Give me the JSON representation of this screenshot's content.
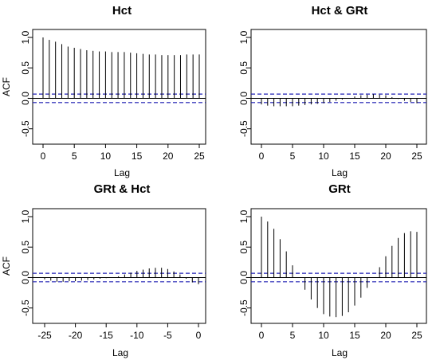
{
  "colors": {
    "ci_line": "#1f1fb4",
    "spike": "#000000"
  },
  "chart_data": [
    {
      "type": "bar",
      "title": "Hct",
      "xlabel": "Lag",
      "ylabel": "ACF",
      "xlim": [
        0,
        25
      ],
      "ylim": [
        -0.7,
        1.0
      ],
      "x_ticks": [
        "0",
        "5",
        "10",
        "15",
        "20",
        "25"
      ],
      "y_ticks": [
        "-0.5",
        "0.0",
        "0.5",
        "1.0"
      ],
      "conf_bound": 0.07,
      "x": [
        0,
        1,
        2,
        3,
        4,
        5,
        6,
        7,
        8,
        9,
        10,
        11,
        12,
        13,
        14,
        15,
        16,
        17,
        18,
        19,
        20,
        21,
        22,
        23,
        24,
        25
      ],
      "values": [
        1.0,
        0.96,
        0.93,
        0.89,
        0.85,
        0.83,
        0.81,
        0.79,
        0.78,
        0.77,
        0.77,
        0.76,
        0.76,
        0.76,
        0.75,
        0.74,
        0.73,
        0.72,
        0.72,
        0.71,
        0.71,
        0.71,
        0.71,
        0.72,
        0.72,
        0.72
      ]
    },
    {
      "type": "bar",
      "title": "Hct & GRt",
      "xlabel": "Lag",
      "ylabel": "",
      "xlim": [
        0,
        25
      ],
      "ylim": [
        -0.7,
        1.0
      ],
      "x_ticks": [
        "0",
        "5",
        "10",
        "15",
        "20",
        "25"
      ],
      "y_ticks": [
        "-0.5",
        "0.0",
        "0.5",
        "1.0"
      ],
      "conf_bound": 0.07,
      "x": [
        0,
        1,
        2,
        3,
        4,
        5,
        6,
        7,
        8,
        9,
        10,
        11,
        12,
        13,
        14,
        15,
        16,
        17,
        18,
        19,
        20,
        21,
        22,
        23,
        24,
        25
      ],
      "values": [
        -0.1,
        -0.12,
        -0.13,
        -0.13,
        -0.13,
        -0.13,
        -0.12,
        -0.11,
        -0.1,
        -0.09,
        -0.08,
        -0.06,
        -0.04,
        -0.02,
        0.0,
        0.03,
        0.05,
        0.06,
        0.07,
        0.06,
        0.05,
        0.02,
        -0.01,
        -0.04,
        -0.06,
        -0.08
      ]
    },
    {
      "type": "bar",
      "title": "GRt & Hct",
      "xlabel": "Lag",
      "ylabel": "ACF",
      "xlim": [
        -25,
        0
      ],
      "ylim": [
        -0.7,
        1.0
      ],
      "x_ticks": [
        "-25",
        "-20",
        "-15",
        "-10",
        "-5",
        "0"
      ],
      "y_ticks": [
        "-0.5",
        "0.0",
        "0.5",
        "1.0"
      ],
      "conf_bound": 0.07,
      "x": [
        -25,
        -24,
        -23,
        -22,
        -21,
        -20,
        -19,
        -18,
        -17,
        -16,
        -15,
        -14,
        -13,
        -12,
        -11,
        -10,
        -9,
        -8,
        -7,
        -6,
        -5,
        -4,
        -3,
        -2,
        -1,
        0
      ],
      "values": [
        -0.03,
        -0.05,
        -0.07,
        -0.07,
        -0.06,
        -0.06,
        -0.05,
        -0.04,
        -0.03,
        -0.02,
        -0.01,
        0.0,
        0.02,
        0.05,
        0.08,
        0.11,
        0.13,
        0.15,
        0.16,
        0.16,
        0.14,
        0.1,
        0.05,
        -0.02,
        -0.08,
        -0.11
      ]
    },
    {
      "type": "bar",
      "title": "GRt",
      "xlabel": "Lag",
      "ylabel": "",
      "xlim": [
        0,
        25
      ],
      "ylim": [
        -0.7,
        1.0
      ],
      "x_ticks": [
        "0",
        "5",
        "10",
        "15",
        "20",
        "25"
      ],
      "y_ticks": [
        "-0.5",
        "0.0",
        "0.5",
        "1.0"
      ],
      "conf_bound": 0.07,
      "x": [
        0,
        1,
        2,
        3,
        4,
        5,
        6,
        7,
        8,
        9,
        10,
        11,
        12,
        13,
        14,
        15,
        16,
        17,
        18,
        19,
        20,
        21,
        22,
        23,
        24,
        25
      ],
      "values": [
        1.0,
        0.92,
        0.8,
        0.63,
        0.43,
        0.2,
        0.0,
        -0.2,
        -0.36,
        -0.5,
        -0.6,
        -0.64,
        -0.65,
        -0.63,
        -0.57,
        -0.46,
        -0.33,
        -0.17,
        0.0,
        0.17,
        0.35,
        0.52,
        0.65,
        0.73,
        0.76,
        0.75
      ]
    }
  ]
}
